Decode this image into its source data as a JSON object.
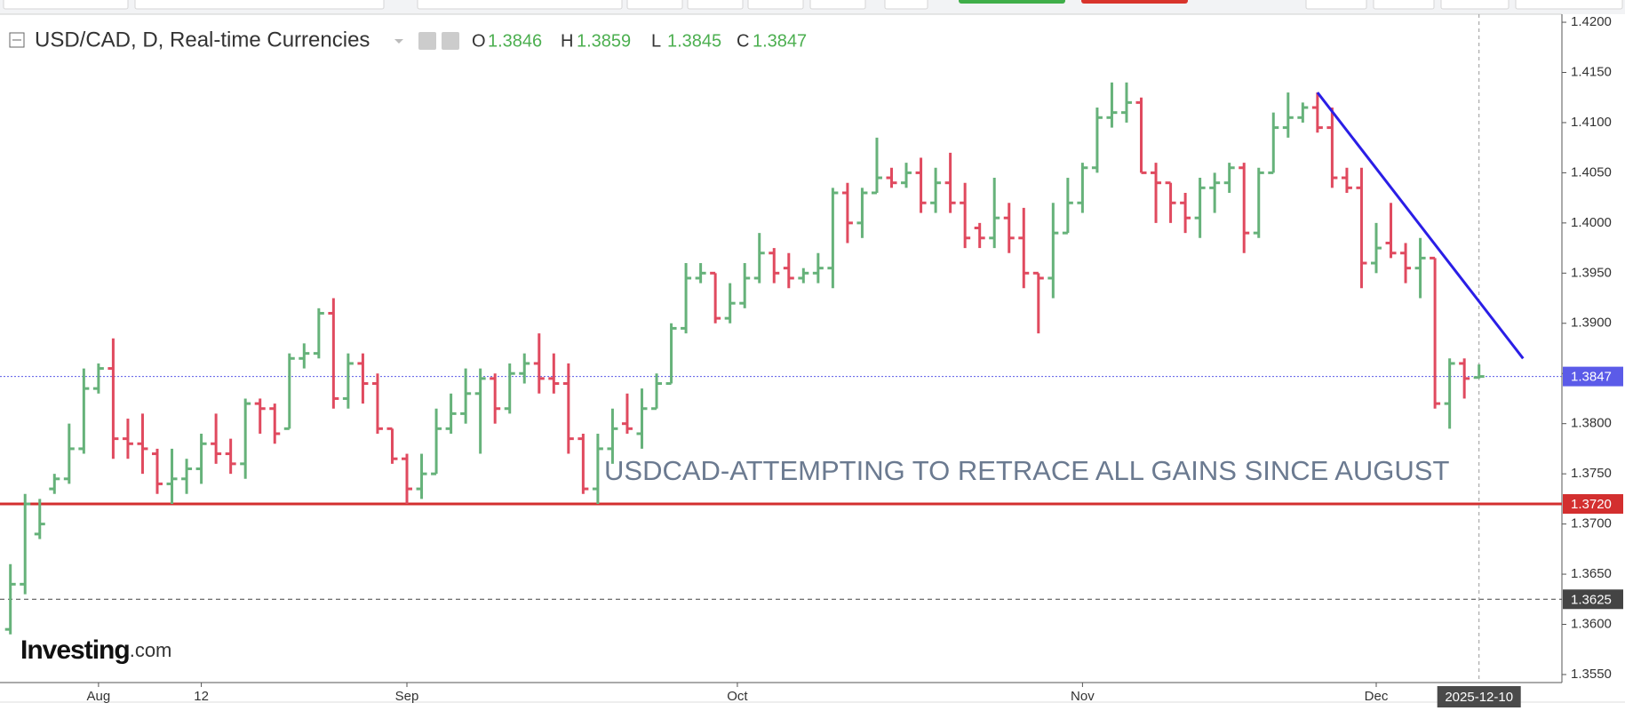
{
  "chart_data": {
    "type": "ohlc",
    "title": "USD/CAD, D, Real-time Currencies",
    "ohlc_labels": [
      "O",
      "H",
      "L",
      "C"
    ],
    "annotation": "USDCAD-ATTEMPTING TO RETRACE ALL GAINS SINCE AUGUST",
    "logo": [
      "Investing",
      ".com"
    ],
    "up_color": "#66b27a",
    "down_color": "#e04a5f",
    "open": [
      1.3595,
      1.364,
      1.369,
      1.3735,
      1.3745,
      1.3775,
      1.3835,
      1.3855,
      1.3785,
      1.378,
      1.377,
      1.374,
      1.3745,
      1.3755,
      1.378,
      1.377,
      1.376,
      1.382,
      1.3815,
      1.3795,
      1.3865,
      1.387,
      1.391,
      1.3825,
      1.386,
      1.384,
      1.3795,
      1.3765,
      1.3735,
      1.375,
      1.3795,
      1.381,
      1.383,
      1.3845,
      1.3815,
      1.385,
      1.386,
      1.3845,
      1.384,
      1.3785,
      1.3735,
      1.3775,
      1.38,
      1.379,
      1.3815,
      1.384,
      1.3895,
      1.3945,
      1.395,
      1.3905,
      1.392,
      1.3945,
      1.397,
      1.3955,
      1.3945,
      1.395,
      1.3955,
      1.403,
      1.4,
      1.403,
      1.4045,
      1.404,
      1.405,
      1.402,
      1.404,
      1.402,
      1.3995,
      1.3985,
      1.4005,
      1.3985,
      1.395,
      1.3945,
      1.399,
      1.402,
      1.4055,
      1.4105,
      1.411,
      1.412,
      1.405,
      1.404,
      1.402,
      1.4005,
      1.4035,
      1.404,
      1.4055,
      1.399,
      1.405,
      1.4095,
      1.4105,
      1.4115,
      1.4095,
      1.4045,
      1.4035,
      1.396,
      1.398,
      1.397,
      1.3955,
      1.3965,
      1.382,
      1.386,
      1.3846
    ],
    "high": [
      1.366,
      1.373,
      1.3725,
      1.375,
      1.38,
      1.3855,
      1.386,
      1.3885,
      1.3805,
      1.381,
      1.3775,
      1.3775,
      1.3765,
      1.379,
      1.381,
      1.3785,
      1.3825,
      1.3825,
      1.382,
      1.387,
      1.388,
      1.3915,
      1.3925,
      1.387,
      1.387,
      1.385,
      1.3795,
      1.377,
      1.377,
      1.3815,
      1.383,
      1.3855,
      1.3855,
      1.385,
      1.386,
      1.387,
      1.389,
      1.387,
      1.386,
      1.379,
      1.379,
      1.3815,
      1.383,
      1.3835,
      1.385,
      1.39,
      1.396,
      1.396,
      1.395,
      1.394,
      1.396,
      1.399,
      1.3975,
      1.397,
      1.3955,
      1.397,
      1.4035,
      1.404,
      1.4035,
      1.4085,
      1.4055,
      1.406,
      1.4065,
      1.4055,
      1.407,
      1.404,
      1.4,
      1.4045,
      1.402,
      1.4015,
      1.395,
      1.402,
      1.4045,
      1.406,
      1.4115,
      1.414,
      1.414,
      1.4125,
      1.406,
      1.404,
      1.403,
      1.4045,
      1.405,
      1.406,
      1.406,
      1.4055,
      1.411,
      1.413,
      1.412,
      1.413,
      1.4115,
      1.4055,
      1.4055,
      1.4,
      1.402,
      1.398,
      1.3985,
      1.3965,
      1.3865,
      1.3865,
      1.3859
    ],
    "low": [
      1.359,
      1.363,
      1.3685,
      1.373,
      1.374,
      1.377,
      1.383,
      1.3765,
      1.3765,
      1.375,
      1.373,
      1.372,
      1.373,
      1.374,
      1.376,
      1.375,
      1.3745,
      1.379,
      1.378,
      1.3795,
      1.3855,
      1.3865,
      1.3815,
      1.3815,
      1.382,
      1.379,
      1.376,
      1.372,
      1.3725,
      1.375,
      1.379,
      1.38,
      1.377,
      1.38,
      1.381,
      1.384,
      1.383,
      1.383,
      1.377,
      1.373,
      1.372,
      1.376,
      1.379,
      1.3775,
      1.3815,
      1.384,
      1.389,
      1.394,
      1.39,
      1.39,
      1.3915,
      1.394,
      1.394,
      1.3935,
      1.394,
      1.394,
      1.3935,
      1.398,
      1.3985,
      1.403,
      1.4035,
      1.4035,
      1.401,
      1.401,
      1.401,
      1.3975,
      1.3975,
      1.3975,
      1.397,
      1.3935,
      1.389,
      1.3925,
      1.399,
      1.401,
      1.405,
      1.4095,
      1.41,
      1.405,
      1.4,
      1.4,
      1.399,
      1.3985,
      1.401,
      1.403,
      1.397,
      1.3985,
      1.405,
      1.4085,
      1.41,
      1.409,
      1.4035,
      1.403,
      1.3935,
      1.395,
      1.3965,
      1.394,
      1.3925,
      1.3815,
      1.3795,
      1.3825,
      1.3845
    ],
    "close": [
      1.364,
      1.372,
      1.37,
      1.3745,
      1.3775,
      1.3835,
      1.3855,
      1.3785,
      1.378,
      1.3775,
      1.374,
      1.3745,
      1.3755,
      1.378,
      1.377,
      1.376,
      1.382,
      1.3815,
      1.379,
      1.3865,
      1.387,
      1.391,
      1.3825,
      1.386,
      1.384,
      1.3795,
      1.3765,
      1.3735,
      1.375,
      1.3795,
      1.381,
      1.383,
      1.3845,
      1.3815,
      1.385,
      1.386,
      1.3845,
      1.384,
      1.3785,
      1.3735,
      1.3775,
      1.3795,
      1.3795,
      1.3815,
      1.384,
      1.3895,
      1.3945,
      1.395,
      1.3905,
      1.392,
      1.3945,
      1.397,
      1.395,
      1.3945,
      1.395,
      1.3955,
      1.403,
      1.4,
      1.403,
      1.4045,
      1.404,
      1.405,
      1.402,
      1.404,
      1.402,
      1.3985,
      1.3985,
      1.4005,
      1.3985,
      1.395,
      1.3945,
      1.399,
      1.402,
      1.4055,
      1.4105,
      1.411,
      1.412,
      1.405,
      1.404,
      1.402,
      1.4005,
      1.4035,
      1.404,
      1.4055,
      1.399,
      1.405,
      1.4095,
      1.4105,
      1.4115,
      1.4095,
      1.4045,
      1.4035,
      1.396,
      1.3975,
      1.397,
      1.3955,
      1.3965,
      1.382,
      1.386,
      1.3845,
      1.3847
    ],
    "ylim": [
      1.3542,
      1.4208
    ],
    "yticks": [
      {
        "value": 1.355,
        "label": "1.3550"
      },
      {
        "value": 1.36,
        "label": "1.3600"
      },
      {
        "value": 1.365,
        "label": "1.3650"
      },
      {
        "value": 1.37,
        "label": "1.3700"
      },
      {
        "value": 1.375,
        "label": "1.3750"
      },
      {
        "value": 1.38,
        "label": "1.3800"
      },
      {
        "value": 1.385,
        "label": "1.3850"
      },
      {
        "value": 1.39,
        "label": "1.3900"
      },
      {
        "value": 1.395,
        "label": "1.3950"
      },
      {
        "value": 1.4,
        "label": "1.4000"
      },
      {
        "value": 1.405,
        "label": "1.4050"
      },
      {
        "value": 1.41,
        "label": "1.4100"
      },
      {
        "value": 1.415,
        "label": "1.4150"
      },
      {
        "value": 1.42,
        "label": "1.4200"
      }
    ],
    "xticks": [
      {
        "value": 6,
        "label": "Aug"
      },
      {
        "value": 13,
        "label": "12"
      },
      {
        "value": 27,
        "label": "Sep"
      },
      {
        "value": 49.5,
        "label": "Oct"
      },
      {
        "value": 73,
        "label": "Nov"
      },
      {
        "value": 93,
        "label": "Dec"
      }
    ],
    "date_marker": {
      "value": 100,
      "label": "2025-12-10"
    },
    "levels": [
      {
        "value": 1.3847,
        "label": "1.3847",
        "color": "#5b5be8",
        "style": "dotted"
      },
      {
        "value": 1.372,
        "label": "1.3720",
        "color": "#d32f2f",
        "style": "solid"
      },
      {
        "value": 1.3625,
        "label": "1.3625",
        "color": "#444444",
        "style": "dashed"
      }
    ],
    "trendline": {
      "x": [
        89,
        103
      ],
      "y": [
        1.413,
        1.3865
      ],
      "color": "#2a1ee6"
    }
  }
}
